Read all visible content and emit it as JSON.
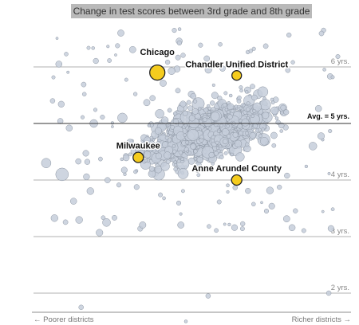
{
  "colors": {
    "highlight": "#f5cc1e",
    "background_dot_fill": "#c5cedb",
    "background_dot_stroke": "#8d96a3",
    "title_box": "#b9b9b9",
    "grid": "#999999",
    "average_line": "#333333"
  },
  "chart_data": {
    "type": "scatter",
    "title": "Change in test scores between 3rd grade and 8th grade",
    "xlabel_left": "← Poorer districts",
    "xlabel_right": "Richer districts →",
    "ylim": [
      1.5,
      7.25
    ],
    "grid": true,
    "y_ticks": [
      {
        "value": 6,
        "label": "6 yrs."
      },
      {
        "value": 4,
        "label": "4 yrs."
      },
      {
        "value": 3,
        "label": "3 yrs."
      },
      {
        "value": 2,
        "label": "2 yrs."
      }
    ],
    "average": {
      "value": 5,
      "label": "Avg. = 5 yrs."
    },
    "highlighted": [
      {
        "name": "Chicago",
        "x": 0.39,
        "y": 5.9,
        "size": 3.0
      },
      {
        "name": "Chandler Unified District",
        "x": 0.64,
        "y": 5.85,
        "size": 1.0
      },
      {
        "name": "Milwaukee",
        "x": 0.33,
        "y": 4.4,
        "size": 1.2
      },
      {
        "name": "Anne Arundel County",
        "x": 0.64,
        "y": 4.0,
        "size": 1.2
      }
    ]
  }
}
